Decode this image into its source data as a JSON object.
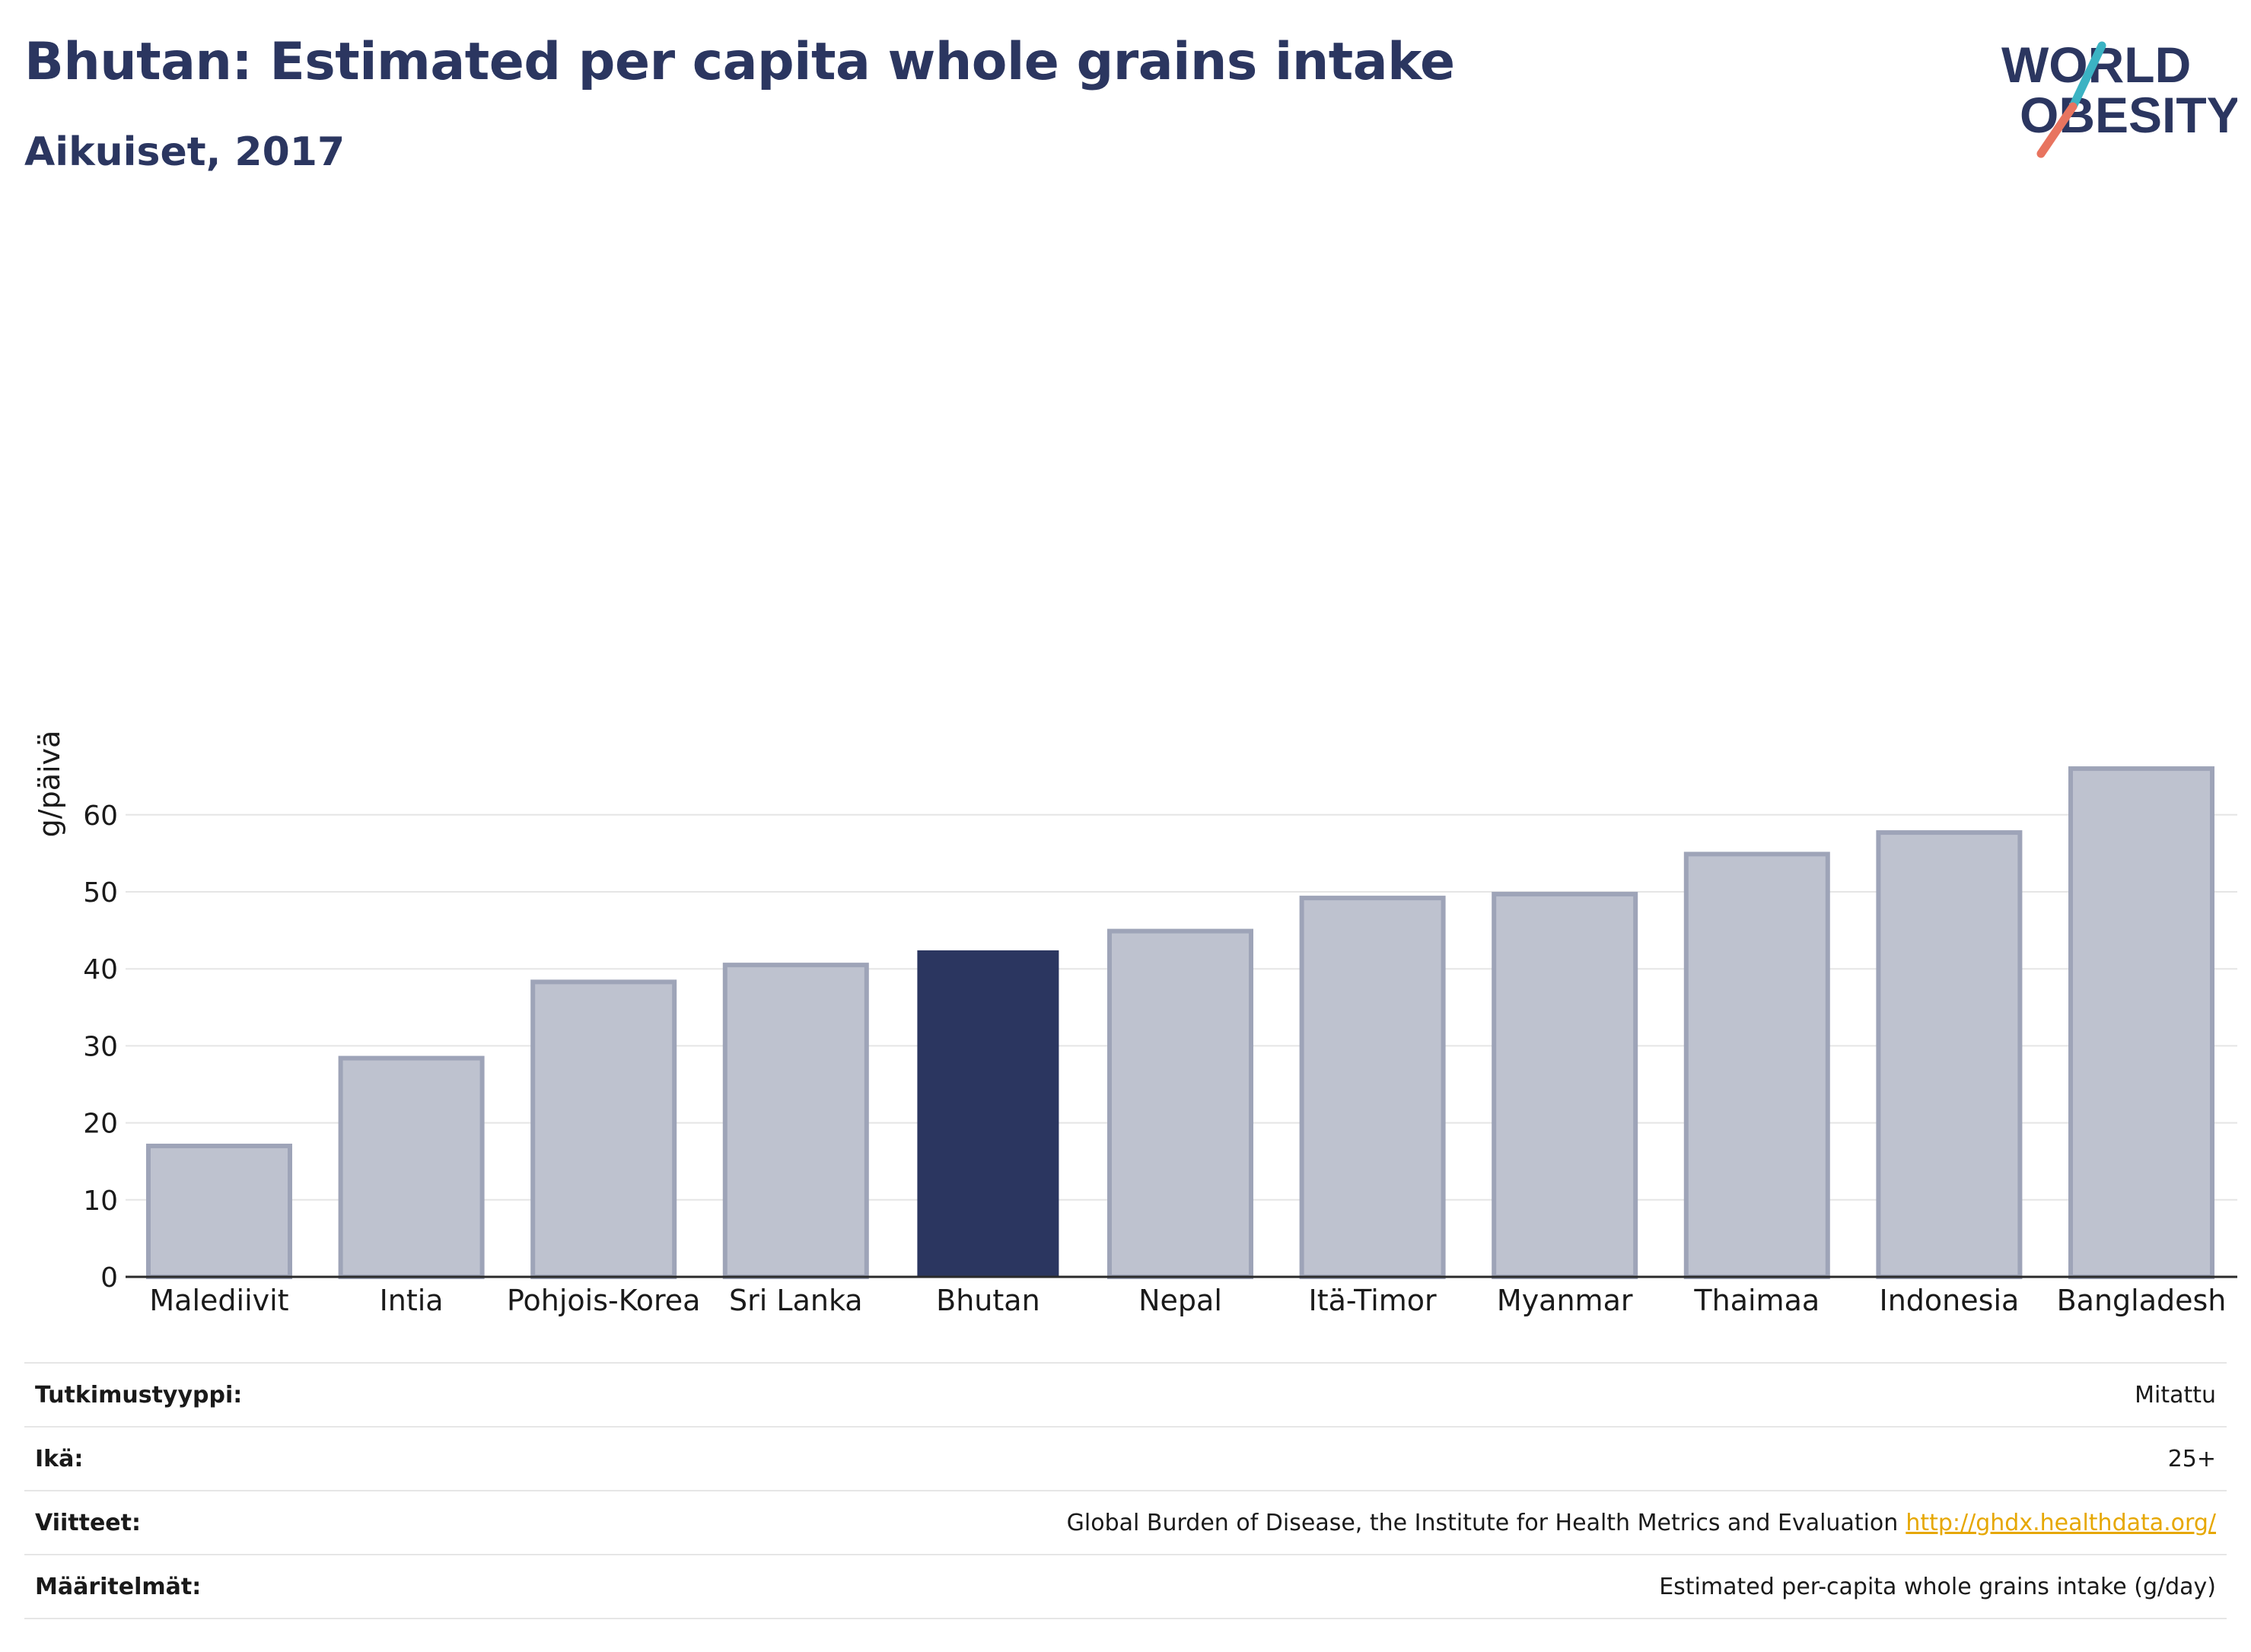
{
  "header": {
    "title": "Bhutan: Estimated per capita whole grains intake",
    "subtitle": "Aikuiset, 2017"
  },
  "logo": {
    "line1": "WORLD",
    "line2": "OBESITY"
  },
  "colors": {
    "highlight": "#2b3660",
    "bar": "#bec2cf",
    "bar_border": "#9ea4b8",
    "grid": "#e5e5e5",
    "accent_teal": "#3bb3c3",
    "accent_coral": "#e8745f"
  },
  "chart_data": {
    "type": "bar",
    "title": "Bhutan: Estimated per capita whole grains intake",
    "subtitle": "Aikuiset, 2017",
    "categories": [
      "Malediivit",
      "Intia",
      "Pohjois-Korea",
      "Sri Lanka",
      "Bhutan",
      "Nepal",
      "Itä-Timor",
      "Myanmar",
      "Thaimaa",
      "Indonesia",
      "Bangladesh"
    ],
    "values": [
      17.0,
      28.4,
      38.3,
      40.5,
      42.4,
      44.9,
      49.2,
      49.7,
      54.9,
      57.7,
      66.0
    ],
    "highlight": "Bhutan",
    "ylabel": "g/päivä",
    "ylim": [
      0,
      68
    ],
    "yticks": [
      0,
      10,
      20,
      30,
      40,
      50,
      60
    ],
    "grid": true
  },
  "meta": {
    "rows": [
      {
        "label": "Tutkimustyyppi:",
        "value": "Mitattu"
      },
      {
        "label": "Ikä:",
        "value": "25+"
      },
      {
        "label": "Viitteet:",
        "value": "Global Burden of Disease, the Institute for Health Metrics and Evaluation",
        "link": "http://ghdx.healthdata.org/"
      },
      {
        "label": "Määritelmät:",
        "value": "Estimated per-capita whole grains intake (g/day)"
      }
    ]
  }
}
